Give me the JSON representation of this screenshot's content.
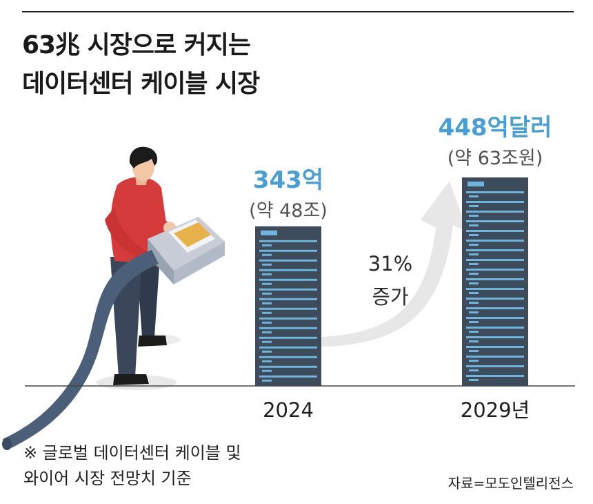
{
  "title": {
    "line1": "63兆 시장으로 커지는",
    "line2": "데이터센터 케이블 시장"
  },
  "chart_data": {
    "type": "bar",
    "categories": [
      "2024",
      "2029년"
    ],
    "values": [
      343,
      448
    ],
    "unit": "억달러",
    "value_labels": [
      "343억",
      "448억달러"
    ],
    "sub_labels": [
      "(약 48조)",
      "(약 63조원)"
    ],
    "growth_label_1": "31%",
    "growth_label_2": "증가"
  },
  "colors": {
    "value_blue": "#4a9ed6",
    "server_dark": "#3d4b5a",
    "server_light": "#6fb4dd",
    "arrow": "#e7e7e7",
    "cable": "#4b5f79",
    "shirt": "#d63b3b"
  },
  "footnote": {
    "line1": "※ 글로벌 데이터센터 케이블 및",
    "line2": "와이어 시장 전망치 기준"
  },
  "source": "자료=모도인텔리전스"
}
